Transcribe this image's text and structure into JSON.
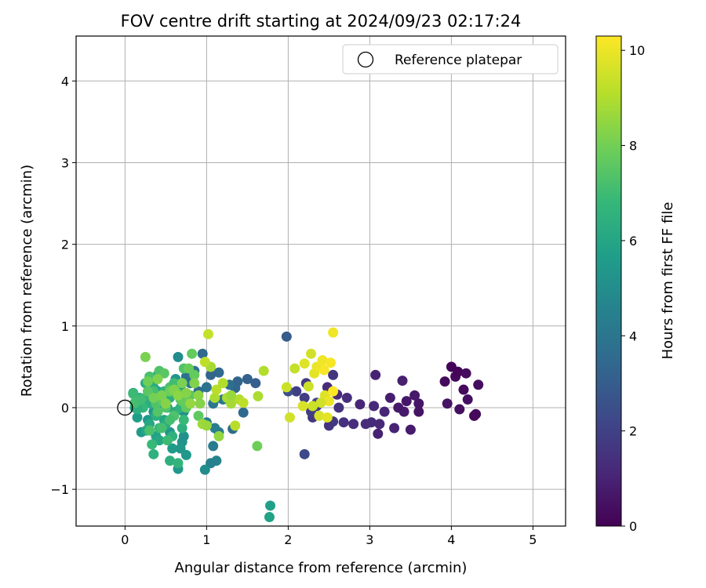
{
  "chart_data": {
    "type": "scatter",
    "title": "FOV centre drift starting at 2024/09/23 02:17:24",
    "xlabel": "Angular distance from reference (arcmin)",
    "ylabel": "Rotation from reference (arcmin)",
    "xlim": [
      -0.6,
      5.4
    ],
    "ylim": [
      -1.45,
      4.55
    ],
    "xticks": [
      "0",
      "1",
      "2",
      "3",
      "4",
      "5"
    ],
    "yticks": [
      "−1",
      "0",
      "1",
      "2",
      "3",
      "4"
    ],
    "grid": true,
    "legend": {
      "placement": "top-right",
      "entries": [
        "Reference platepar"
      ]
    },
    "reference_point": {
      "x": 0,
      "y": 0
    },
    "colorbar": {
      "label": "Hours from first FF file",
      "range": [
        0,
        10.3
      ],
      "ticks": [
        "0",
        "2",
        "4",
        "6",
        "8",
        "10"
      ],
      "colormap": [
        "#440154",
        "#482878",
        "#3e4989",
        "#31688e",
        "#26828e",
        "#1f9e89",
        "#35b779",
        "#6ece58",
        "#b5de2b",
        "#fde725"
      ]
    },
    "points": [
      [
        4.0,
        0.5,
        0.1
      ],
      [
        4.05,
        0.38,
        0.2
      ],
      [
        3.92,
        0.32,
        0.3
      ],
      [
        4.15,
        0.22,
        0.25
      ],
      [
        4.2,
        0.1,
        0.4
      ],
      [
        4.28,
        -0.1,
        0.15
      ],
      [
        4.33,
        0.28,
        0.35
      ],
      [
        4.1,
        -0.02,
        0.45
      ],
      [
        3.95,
        0.05,
        0.5
      ],
      [
        4.08,
        0.44,
        0.1
      ],
      [
        4.18,
        0.42,
        0.3
      ],
      [
        4.3,
        -0.08,
        0.2
      ],
      [
        3.6,
        0.05,
        0.6
      ],
      [
        3.55,
        0.15,
        0.7
      ],
      [
        3.5,
        -0.27,
        0.8
      ],
      [
        3.45,
        0.08,
        0.65
      ],
      [
        3.4,
        0.33,
        0.9
      ],
      [
        3.42,
        -0.05,
        0.75
      ],
      [
        3.3,
        -0.25,
        1.0
      ],
      [
        3.25,
        0.12,
        0.85
      ],
      [
        3.18,
        -0.05,
        1.1
      ],
      [
        3.12,
        -0.2,
        1.2
      ],
      [
        3.1,
        -0.32,
        0.95
      ],
      [
        3.07,
        0.4,
        1.0
      ],
      [
        3.05,
        0.02,
        1.15
      ],
      [
        3.02,
        -0.18,
        1.25
      ],
      [
        2.95,
        -0.2,
        1.3
      ],
      [
        2.88,
        0.04,
        1.05
      ],
      [
        2.8,
        -0.2,
        1.4
      ],
      [
        2.72,
        0.12,
        1.35
      ],
      [
        2.68,
        -0.18,
        1.45
      ],
      [
        2.62,
        0.0,
        1.5
      ],
      [
        2.6,
        0.16,
        1.25
      ],
      [
        2.55,
        0.4,
        1.6
      ],
      [
        2.55,
        -0.17,
        1.7
      ],
      [
        2.5,
        -0.22,
        1.55
      ],
      [
        2.48,
        0.25,
        1.3
      ],
      [
        2.35,
        0.02,
        1.8
      ],
      [
        2.3,
        -0.12,
        1.65
      ],
      [
        2.22,
        0.3,
        1.75
      ],
      [
        2.2,
        0.12,
        1.9
      ],
      [
        2.28,
        -0.05,
        1.85
      ],
      [
        2.1,
        0.2,
        1.95
      ],
      [
        3.6,
        -0.05,
        0.55
      ],
      [
        3.35,
        0.0,
        0.7
      ],
      [
        2.2,
        -0.57,
        2.3
      ],
      [
        2.0,
        0.2,
        2.5
      ],
      [
        1.98,
        0.87,
        3.0
      ],
      [
        2.35,
        0.06,
        2.2
      ],
      [
        1.6,
        0.3,
        3.1
      ],
      [
        1.5,
        0.35,
        3.2
      ],
      [
        1.45,
        -0.06,
        3.5
      ],
      [
        1.38,
        0.32,
        3.3
      ],
      [
        1.35,
        0.24,
        3.4
      ],
      [
        1.32,
        -0.26,
        3.6
      ],
      [
        1.28,
        0.28,
        3.7
      ],
      [
        1.15,
        0.43,
        3.5
      ],
      [
        1.1,
        0.1,
        3.8
      ],
      [
        1.05,
        0.4,
        3.3
      ],
      [
        1.0,
        0.25,
        3.9
      ],
      [
        0.95,
        0.66,
        3.5
      ],
      [
        0.9,
        0.2,
        3.6
      ],
      [
        0.85,
        0.45,
        3.9
      ],
      [
        0.8,
        0.3,
        4.0
      ],
      [
        0.75,
        0.38,
        3.8
      ],
      [
        1.2,
        0.1,
        4.1
      ],
      [
        1.15,
        -0.3,
        4.2
      ],
      [
        1.08,
        -0.47,
        4.3
      ],
      [
        1.08,
        0.05,
        4.1
      ],
      [
        1.1,
        -0.25,
        4.4
      ],
      [
        1.0,
        -0.18,
        4.5
      ],
      [
        1.12,
        -0.65,
        4.6
      ],
      [
        1.05,
        -0.68,
        4.5
      ],
      [
        0.98,
        -0.76,
        5.0
      ],
      [
        0.65,
        0.62,
        5.0
      ],
      [
        0.7,
        0.2,
        5.2
      ],
      [
        0.72,
        -0.05,
        5.1
      ],
      [
        0.7,
        -0.42,
        5.3
      ],
      [
        0.68,
        -0.5,
        5.4
      ],
      [
        0.65,
        -0.75,
        5.5
      ],
      [
        0.72,
        -0.35,
        5.2
      ],
      [
        0.6,
        -0.1,
        5.3
      ],
      [
        0.55,
        -0.3,
        5.4
      ],
      [
        0.5,
        0.15,
        5.5
      ],
      [
        0.45,
        0.05,
        5.3
      ],
      [
        0.4,
        0.2,
        5.6
      ],
      [
        0.35,
        -0.05,
        5.4
      ],
      [
        0.3,
        0.3,
        5.7
      ],
      [
        0.28,
        -0.15,
        5.5
      ],
      [
        0.25,
        0.1,
        5.8
      ],
      [
        0.2,
        -0.3,
        5.6
      ],
      [
        0.18,
        0.05,
        5.9
      ],
      [
        0.15,
        -0.12,
        5.7
      ],
      [
        0.12,
        0.0,
        5.8
      ],
      [
        0.1,
        0.18,
        6.0
      ],
      [
        0.38,
        -0.35,
        5.9
      ],
      [
        0.48,
        -0.15,
        6.0
      ],
      [
        0.58,
        -0.5,
        5.6
      ],
      [
        0.62,
        0.35,
        5.4
      ],
      [
        0.75,
        -0.58,
        5.5
      ],
      [
        0.52,
        0.0,
        5.7
      ],
      [
        0.42,
        -0.4,
        6.1
      ],
      [
        0.25,
        0.3,
        6.3
      ],
      [
        0.3,
        -0.2,
        6.2
      ],
      [
        0.32,
        0.05,
        6.4
      ],
      [
        0.35,
        0.25,
        6.3
      ],
      [
        0.38,
        -0.1,
        6.5
      ],
      [
        0.4,
        0.4,
        6.2
      ],
      [
        0.45,
        0.1,
        6.6
      ],
      [
        0.5,
        -0.2,
        6.4
      ],
      [
        0.55,
        0.12,
        6.5
      ],
      [
        0.58,
        -0.35,
        6.6
      ],
      [
        0.62,
        -0.05,
        6.3
      ],
      [
        0.65,
        0.18,
        6.7
      ],
      [
        0.7,
        -0.25,
        6.5
      ],
      [
        0.22,
        0.0,
        6.8
      ],
      [
        0.28,
        0.15,
        6.6
      ],
      [
        0.33,
        -0.45,
        6.9
      ],
      [
        0.48,
        0.2,
        6.7
      ],
      [
        0.6,
        0.25,
        6.8
      ],
      [
        0.68,
        0.0,
        6.6
      ],
      [
        0.72,
        -0.15,
        6.9
      ],
      [
        0.18,
        0.12,
        6.4
      ],
      [
        0.15,
        -0.02,
        6.5
      ],
      [
        0.42,
        -0.25,
        6.8
      ],
      [
        0.52,
        -0.4,
        7.0
      ],
      [
        0.35,
        -0.57,
        6.6
      ],
      [
        0.55,
        -0.65,
        6.5
      ],
      [
        0.65,
        -0.68,
        6.7
      ],
      [
        0.4,
        -0.05,
        6.2
      ],
      [
        0.26,
        -0.28,
        6.1
      ],
      [
        0.1,
        0.17,
        7.0
      ],
      [
        0.12,
        0.06,
        7.2
      ],
      [
        0.2,
        0.1,
        7.1
      ],
      [
        0.3,
        0.38,
        7.3
      ],
      [
        0.35,
        0.2,
        7.2
      ],
      [
        0.42,
        0.45,
        7.4
      ],
      [
        0.45,
        -0.25,
        7.2
      ],
      [
        0.5,
        0.0,
        7.5
      ],
      [
        0.55,
        0.25,
        7.3
      ],
      [
        0.6,
        -0.1,
        7.4
      ],
      [
        0.62,
        0.2,
        7.6
      ],
      [
        0.68,
        0.1,
        7.5
      ],
      [
        0.72,
        0.48,
        7.4
      ],
      [
        0.75,
        0.0,
        7.7
      ],
      [
        0.8,
        0.15,
        7.6
      ],
      [
        0.85,
        0.4,
        7.8
      ],
      [
        0.9,
        -0.1,
        7.7
      ],
      [
        0.3,
        -0.28,
        7.3
      ],
      [
        0.4,
        -0.05,
        7.5
      ],
      [
        0.78,
        0.48,
        7.9
      ],
      [
        0.82,
        0.66,
        7.8
      ],
      [
        0.38,
        0.05,
        7.4
      ],
      [
        0.48,
        0.42,
        7.6
      ],
      [
        0.55,
        -0.15,
        7.2
      ],
      [
        0.7,
        0.08,
        7.8
      ],
      [
        0.6,
        0.3,
        7.1
      ],
      [
        0.28,
        0.2,
        7.6
      ],
      [
        0.46,
        0.08,
        7.7
      ],
      [
        0.25,
        0.62,
        8.2
      ],
      [
        0.28,
        0.32,
        8.0
      ],
      [
        0.35,
        0.12,
        8.1
      ],
      [
        0.4,
        0.35,
        8.3
      ],
      [
        0.45,
        0.15,
        8.2
      ],
      [
        0.5,
        0.05,
        8.4
      ],
      [
        0.55,
        0.2,
        8.0
      ],
      [
        0.6,
        0.22,
        8.3
      ],
      [
        0.65,
        0.15,
        8.5
      ],
      [
        0.7,
        0.3,
        8.2
      ],
      [
        0.75,
        0.18,
        8.4
      ],
      [
        0.8,
        0.05,
        8.6
      ],
      [
        0.85,
        0.3,
        8.3
      ],
      [
        0.9,
        0.15,
        8.5
      ],
      [
        0.95,
        -0.2,
        8.8
      ],
      [
        1.0,
        -0.22,
        8.7
      ],
      [
        1.05,
        0.5,
        8.9
      ],
      [
        1.1,
        0.12,
        9.0
      ],
      [
        1.15,
        -0.35,
        8.6
      ],
      [
        1.2,
        0.3,
        9.1
      ],
      [
        1.25,
        0.12,
        9.0
      ],
      [
        1.3,
        0.05,
        8.9
      ],
      [
        1.35,
        -0.22,
        9.2
      ],
      [
        1.4,
        0.1,
        9.1
      ],
      [
        1.45,
        0.06,
        9.3
      ],
      [
        1.62,
        -0.47,
        8.0
      ],
      [
        1.63,
        0.14,
        9.0
      ],
      [
        1.7,
        0.45,
        9.1
      ],
      [
        0.98,
        0.56,
        9.3
      ],
      [
        1.02,
        0.9,
        9.4
      ],
      [
        1.12,
        0.22,
        9.2
      ],
      [
        0.92,
        0.05,
        8.4
      ],
      [
        1.3,
        0.15,
        8.7
      ],
      [
        1.98,
        0.25,
        9.5
      ],
      [
        2.02,
        -0.12,
        9.6
      ],
      [
        2.08,
        0.48,
        9.4
      ],
      [
        2.18,
        0.02,
        9.7
      ],
      [
        2.2,
        0.54,
        9.8
      ],
      [
        2.25,
        0.26,
        9.5
      ],
      [
        2.28,
        0.66,
        9.6
      ],
      [
        2.32,
        0.42,
        9.9
      ],
      [
        2.35,
        0.5,
        10.0
      ],
      [
        2.38,
        -0.1,
        9.7
      ],
      [
        2.42,
        0.58,
        10.1
      ],
      [
        2.45,
        0.15,
        9.8
      ],
      [
        2.48,
        -0.12,
        9.9
      ],
      [
        2.5,
        0.08,
        10.0
      ],
      [
        2.52,
        0.55,
        10.2
      ],
      [
        2.55,
        0.92,
        10.1
      ],
      [
        2.55,
        0.2,
        10.3
      ],
      [
        2.4,
        0.06,
        9.6
      ],
      [
        2.44,
        0.46,
        10.2
      ],
      [
        2.3,
        0.02,
        9.5
      ],
      [
        1.78,
        -1.2,
        5.8
      ],
      [
        1.77,
        -1.34,
        5.9
      ]
    ]
  }
}
